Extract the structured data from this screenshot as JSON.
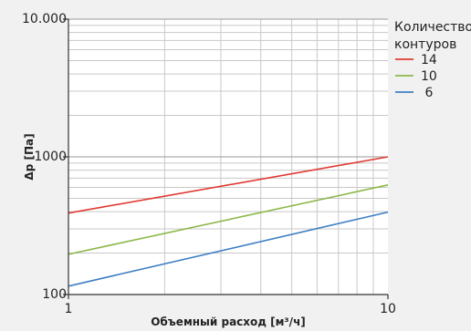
{
  "chart_data": {
    "type": "line",
    "title": "",
    "xlabel": "Объемный расход  [м³/ч]",
    "ylabel": "Δp [Па]",
    "x_scale": "log",
    "y_scale": "log",
    "xlim": [
      1,
      10
    ],
    "ylim": [
      100,
      10000
    ],
    "x_ticks": [
      {
        "value": 1,
        "label": "1"
      },
      {
        "value": 10,
        "label": "10"
      }
    ],
    "y_ticks": [
      {
        "value": 100,
        "label": "100"
      },
      {
        "value": 1000,
        "label": "1000"
      },
      {
        "value": 10000,
        "label": "10.000"
      }
    ],
    "grid": true,
    "legend": {
      "title_lines": [
        "Количество",
        "контуров"
      ],
      "placement": "right"
    },
    "series": [
      {
        "name": "14",
        "color": "#e03a32",
        "x": [
          1,
          10
        ],
        "y": [
          390,
          1000
        ]
      },
      {
        "name": "10",
        "color": "#8cb84a",
        "x": [
          1,
          10
        ],
        "y": [
          196,
          625
        ]
      },
      {
        "name": "6",
        "color": "#3f7fc4",
        "x": [
          1,
          10
        ],
        "y": [
          115,
          397
        ]
      }
    ]
  }
}
